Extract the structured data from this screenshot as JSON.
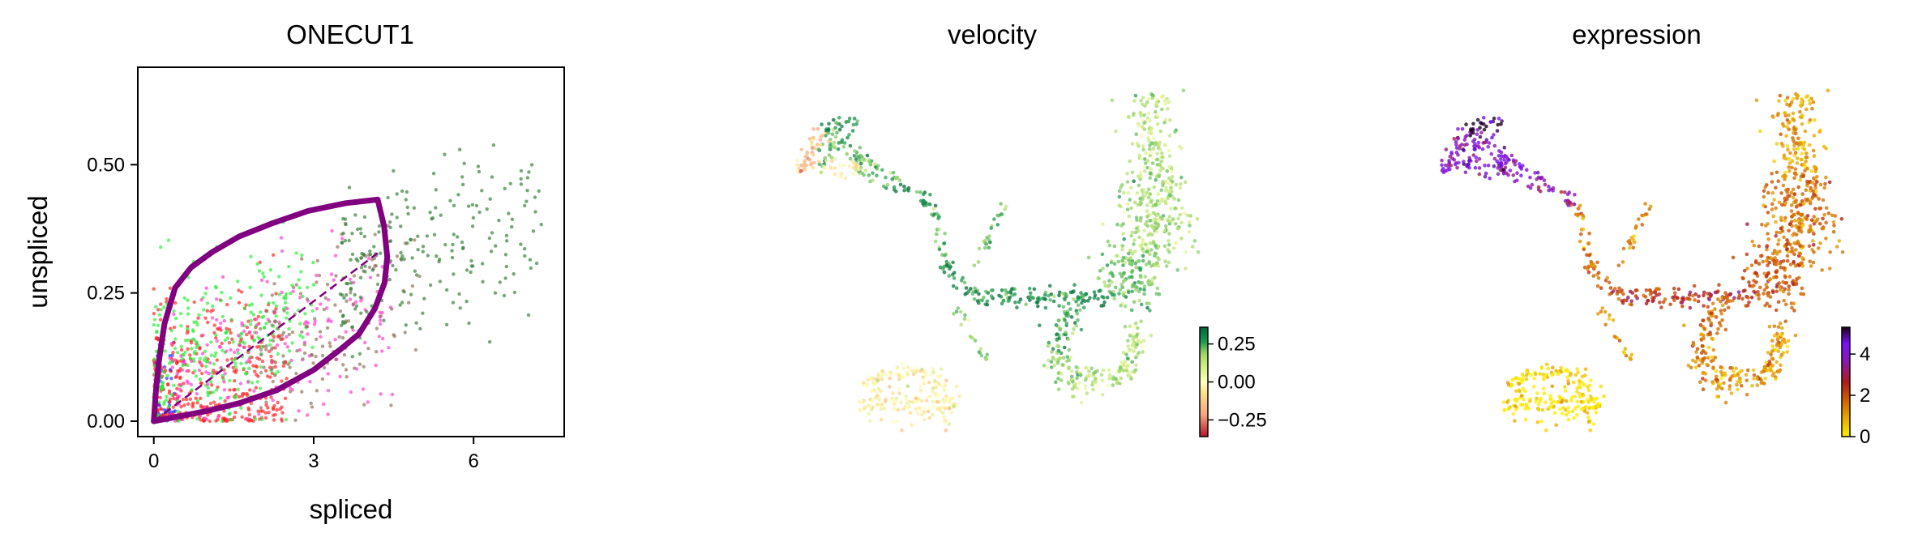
{
  "chart_data": [
    {
      "type": "scatter",
      "title": "ONECUT1",
      "xlabel": "spliced",
      "ylabel": "unspliced",
      "xlim": [
        -0.3,
        7.7
      ],
      "ylim": [
        -0.03,
        0.69
      ],
      "x_ticks": [
        "0",
        "3",
        "6"
      ],
      "x_tick_values": [
        0,
        3,
        6
      ],
      "y_ticks": [
        "0.00",
        "0.25",
        "0.50"
      ],
      "y_tick_values": [
        0,
        0.25,
        0.5
      ],
      "grid": false,
      "legend": "none",
      "point_colors": [
        "#1a2cff",
        "#ff1a1a",
        "#22ee33",
        "#ff33cc",
        "#8b6b55",
        "#2e7a30"
      ],
      "fit_curve_color": "#800080",
      "steady_state_slope": 0.078,
      "fit_curve_upper": [
        [
          0,
          0
        ],
        [
          0.1,
          0.09
        ],
        [
          0.3,
          0.16
        ],
        [
          0.7,
          0.225
        ],
        [
          1.2,
          0.27
        ],
        [
          1.8,
          0.315
        ],
        [
          2.5,
          0.355
        ],
        [
          3.2,
          0.39
        ],
        [
          3.8,
          0.415
        ],
        [
          4.2,
          0.432
        ]
      ],
      "fit_curve_lower": [
        [
          4.2,
          0.432
        ],
        [
          4.32,
          0.38
        ],
        [
          4.38,
          0.32
        ],
        [
          4.33,
          0.27
        ],
        [
          4.15,
          0.22
        ],
        [
          3.85,
          0.17
        ]
      ],
      "fit_curve_return": [
        [
          0,
          0
        ],
        [
          0.04,
          0.06
        ],
        [
          0.1,
          0.12
        ],
        [
          0.2,
          0.19
        ],
        [
          0.4,
          0.26
        ],
        [
          0.7,
          0.3
        ],
        [
          1.1,
          0.33
        ],
        [
          1.6,
          0.36
        ],
        [
          2.2,
          0.385
        ],
        [
          2.9,
          0.41
        ],
        [
          3.6,
          0.425
        ],
        [
          4.2,
          0.432
        ]
      ],
      "series": [
        {
          "color": "#1a2cff",
          "n": 60,
          "x_range": [
            0,
            0.4
          ],
          "y_center": 0.06
        },
        {
          "color": "#ff1a1a",
          "n": 380,
          "x_range": [
            0,
            2.5
          ],
          "y_center": 0.1
        },
        {
          "color": "#22ee33",
          "n": 300,
          "x_range": [
            0,
            3
          ],
          "y_center": 0.22
        },
        {
          "color": "#ff33cc",
          "n": 180,
          "x_range": [
            0.3,
            4.5
          ],
          "y_center": 0.22
        },
        {
          "color": "#8b6b55",
          "n": 140,
          "x_range": [
            2,
            5
          ],
          "y_center": 0.27
        },
        {
          "color": "#2e7a30",
          "n": 220,
          "x_range": [
            3.5,
            7.3
          ],
          "y_center": 0.38
        }
      ]
    },
    {
      "type": "scatter",
      "title": "velocity",
      "colorbar_ticks": [
        "0.25",
        "0.00",
        "−0.25"
      ],
      "colorbar_tick_values": [
        0.25,
        0,
        -0.25
      ],
      "colorbar_range": [
        -0.36,
        0.36
      ],
      "colormap": [
        "#b2182b",
        "#f4a582",
        "#fee08b",
        "#ffffbf",
        "#d9ef8b",
        "#a6d96a",
        "#66bd63",
        "#1a9850",
        "#006837"
      ]
    },
    {
      "type": "scatter",
      "title": "expression",
      "colorbar_ticks": [
        "4",
        "2",
        "0"
      ],
      "colorbar_tick_values": [
        4,
        2,
        0
      ],
      "colorbar_range": [
        0,
        5.3
      ],
      "colormap": [
        "#ffee00",
        "#e5a400",
        "#cc5500",
        "#b01a1a",
        "#8a18b0",
        "#7a10ff",
        "#1a001a"
      ]
    }
  ]
}
